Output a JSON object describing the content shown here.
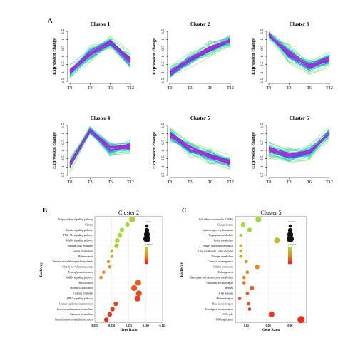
{
  "panel_labels": [
    "A",
    "B",
    "C"
  ],
  "chart_data": [
    {
      "type": "line",
      "title": "Cluster 1",
      "x": [
        "T0",
        "T3",
        "T6",
        "T12"
      ],
      "ylabel": "Expression change",
      "ylim": [
        -1.5,
        1.5
      ],
      "yticks": [
        "-1.5",
        "-1",
        "-0.5",
        "0",
        "0.5",
        "1",
        "1.5"
      ],
      "center": [
        -0.9,
        0.15,
        0.85,
        -0.3
      ],
      "spread": [
        0.55,
        0.55,
        0.4,
        0.6
      ]
    },
    {
      "type": "line",
      "title": "Cluster 2",
      "x": [
        "T0",
        "T3",
        "T6",
        "T12"
      ],
      "ylabel": "Expression change",
      "ylim": [
        -1.5,
        1.5
      ],
      "yticks": [
        "-1.5",
        "-1",
        "-0.5",
        "0",
        "0.5",
        "1",
        "1.5"
      ],
      "center": [
        -1.0,
        -0.2,
        0.5,
        0.95
      ],
      "spread": [
        0.45,
        0.5,
        0.55,
        0.4
      ]
    },
    {
      "type": "line",
      "title": "Cluster 3",
      "x": [
        "T0",
        "T3",
        "T6",
        "T12"
      ],
      "ylabel": "Expression change",
      "ylim": [
        -1.5,
        1.5
      ],
      "yticks": [
        "-1.5",
        "-1",
        "-0.5",
        "0",
        "0.5",
        "1",
        "1.5"
      ],
      "center": [
        1.3,
        0.15,
        -0.6,
        -0.15
      ],
      "spread": [
        0.3,
        0.55,
        0.5,
        0.55
      ]
    },
    {
      "type": "line",
      "title": "Cluster 4",
      "x": [
        "T0",
        "T3",
        "T6",
        "T12"
      ],
      "ylabel": "Expression change",
      "ylim": [
        -1.5,
        1.5
      ],
      "yticks": [
        "-1.5",
        "-1",
        "-0.5",
        "0",
        "0.5",
        "1",
        "1.5"
      ],
      "center": [
        -0.85,
        1.2,
        0.1,
        0.25
      ],
      "spread": [
        0.5,
        0.3,
        0.55,
        0.5
      ]
    },
    {
      "type": "line",
      "title": "Cluster 5",
      "x": [
        "T0",
        "T3",
        "T6",
        "T12"
      ],
      "ylabel": "Expression change",
      "ylim": [
        -1.5,
        1.5
      ],
      "yticks": [
        "-1.5",
        "-1",
        "-0.5",
        "0",
        "0.5",
        "1",
        "1.5"
      ],
      "center": [
        0.95,
        0.15,
        -0.35,
        -0.75
      ],
      "spread": [
        0.5,
        0.55,
        0.5,
        0.45
      ]
    },
    {
      "type": "line",
      "title": "Cluster 6",
      "x": [
        "T0",
        "T3",
        "T6",
        "T12"
      ],
      "ylabel": "Expression change",
      "ylim": [
        -1.5,
        1.5
      ],
      "yticks": [
        "-1.5",
        "-1",
        "-0.5",
        "0",
        "0.5",
        "1",
        "1.5"
      ],
      "center": [
        0.05,
        -0.3,
        -0.1,
        1.05
      ],
      "spread": [
        0.5,
        0.55,
        0.5,
        0.4
      ]
    },
    {
      "type": "scatter",
      "title": "Cluster 2",
      "xlabel": "Gene Ratio",
      "ylabel": "Pathway",
      "xlim": [
        0.025,
        0.125
      ],
      "xticks": [
        "0.025",
        "0.050",
        "0.075",
        "0.100",
        "0.125"
      ],
      "legend_count_title": "Count",
      "legend_padj_title": "p.adjust",
      "categories": [
        "Adipocytokine signaling pathway",
        "Glioma",
        "Insulin signaling pathway",
        "PI3K-Akt signaling pathway",
        "MAPK signaling pathway",
        "Platinum drug resistance",
        "Taurine metabolism",
        "Bile secretion",
        "Terminal steroidal enzyme biosynthesis",
        "Glycolysis / Gluconeogenesis",
        "Proteoglycans in cancer",
        "AMPK signaling pathway",
        "Breast cancer",
        "MicroRNAs in cancer",
        "Cushing syndrome",
        "HIF-1 signaling pathway",
        "Human papillomavirus infection",
        "Fructose and mannose metabolism",
        "Galactose metabolism",
        "Central carbon metabolism in cancer"
      ],
      "points": [
        {
          "x": 0.08,
          "count": 3,
          "padj": 0.04
        },
        {
          "x": 0.073,
          "count": 2,
          "padj": 0.045
        },
        {
          "x": 0.065,
          "count": 2,
          "padj": 0.044
        },
        {
          "x": 0.062,
          "count": 2,
          "padj": 0.043
        },
        {
          "x": 0.058,
          "count": 2,
          "padj": 0.042
        },
        {
          "x": 0.057,
          "count": 2,
          "padj": 0.04
        },
        {
          "x": 0.05,
          "count": 1,
          "padj": 0.035
        },
        {
          "x": 0.05,
          "count": 1,
          "padj": 0.03
        },
        {
          "x": 0.045,
          "count": 1,
          "padj": 0.028
        },
        {
          "x": 0.047,
          "count": 1,
          "padj": 0.025
        },
        {
          "x": 0.038,
          "count": 1,
          "padj": 0.022
        },
        {
          "x": 0.034,
          "count": 1,
          "padj": 0.02
        },
        {
          "x": 0.089,
          "count": 3,
          "padj": 0.012
        },
        {
          "x": 0.083,
          "count": 3,
          "padj": 0.01
        },
        {
          "x": 0.09,
          "count": 3,
          "padj": 0.008
        },
        {
          "x": 0.088,
          "count": 3,
          "padj": 0.006
        },
        {
          "x": 0.056,
          "count": 2,
          "padj": 0.005
        },
        {
          "x": 0.051,
          "count": 2,
          "padj": 0.004
        },
        {
          "x": 0.047,
          "count": 2,
          "padj": 0.003
        },
        {
          "x": 0.042,
          "count": 2,
          "padj": 0.002
        }
      ]
    },
    {
      "type": "scatter",
      "title": "Cluster 5",
      "xlabel": "Gene Ratio",
      "ylabel": "Pathway",
      "xlim": [
        0.01,
        0.075
      ],
      "xticks": [
        "0.02",
        "0.04",
        "0.06"
      ],
      "legend_count_title": "Count",
      "legend_padj_title": "p.adjust",
      "categories": [
        "Cell adhesion molecules (CAMs)",
        "Chagas disease",
        "Systemic lupus erythematosus",
        "Tryptophan metabolism",
        "Purine metabolism",
        "Primary bile acid biosynthesis",
        "Drug metabolism - other enzymes",
        "Nitrogen metabolism",
        "Chemical carcinogenesis",
        "Cellular senescence",
        "Melanogenesis",
        "Glyoxylate and dicarboxylate metabolism",
        "Nucleotide excision repair",
        "Measles",
        "Prion diseases",
        "Mismatch repair",
        "Base excision repair",
        "Homologous recombination",
        "Cell cycle",
        "DNA replication"
      ],
      "points": [
        {
          "x": 0.031,
          "count": 3,
          "padj": 0.045
        },
        {
          "x": 0.017,
          "count": 2,
          "padj": 0.044
        },
        {
          "x": 0.023,
          "count": 2,
          "padj": 0.043
        },
        {
          "x": 0.015,
          "count": 1,
          "padj": 0.04
        },
        {
          "x": 0.048,
          "count": 3,
          "padj": 0.035
        },
        {
          "x": 0.015,
          "count": 1,
          "padj": 0.032
        },
        {
          "x": 0.015,
          "count": 1,
          "padj": 0.03
        },
        {
          "x": 0.015,
          "count": 1,
          "padj": 0.028
        },
        {
          "x": 0.02,
          "count": 1,
          "padj": 0.026
        },
        {
          "x": 0.03,
          "count": 2,
          "padj": 0.022
        },
        {
          "x": 0.021,
          "count": 1,
          "padj": 0.02
        },
        {
          "x": 0.018,
          "count": 1,
          "padj": 0.018
        },
        {
          "x": 0.018,
          "count": 1,
          "padj": 0.015
        },
        {
          "x": 0.025,
          "count": 2,
          "padj": 0.012
        },
        {
          "x": 0.021,
          "count": 1,
          "padj": 0.01
        },
        {
          "x": 0.014,
          "count": 1,
          "padj": 0.008
        },
        {
          "x": 0.022,
          "count": 1,
          "padj": 0.006
        },
        {
          "x": 0.023,
          "count": 1,
          "padj": 0.004
        },
        {
          "x": 0.043,
          "count": 3,
          "padj": 0.003
        },
        {
          "x": 0.07,
          "count": 4,
          "padj": 0.001
        }
      ]
    }
  ]
}
